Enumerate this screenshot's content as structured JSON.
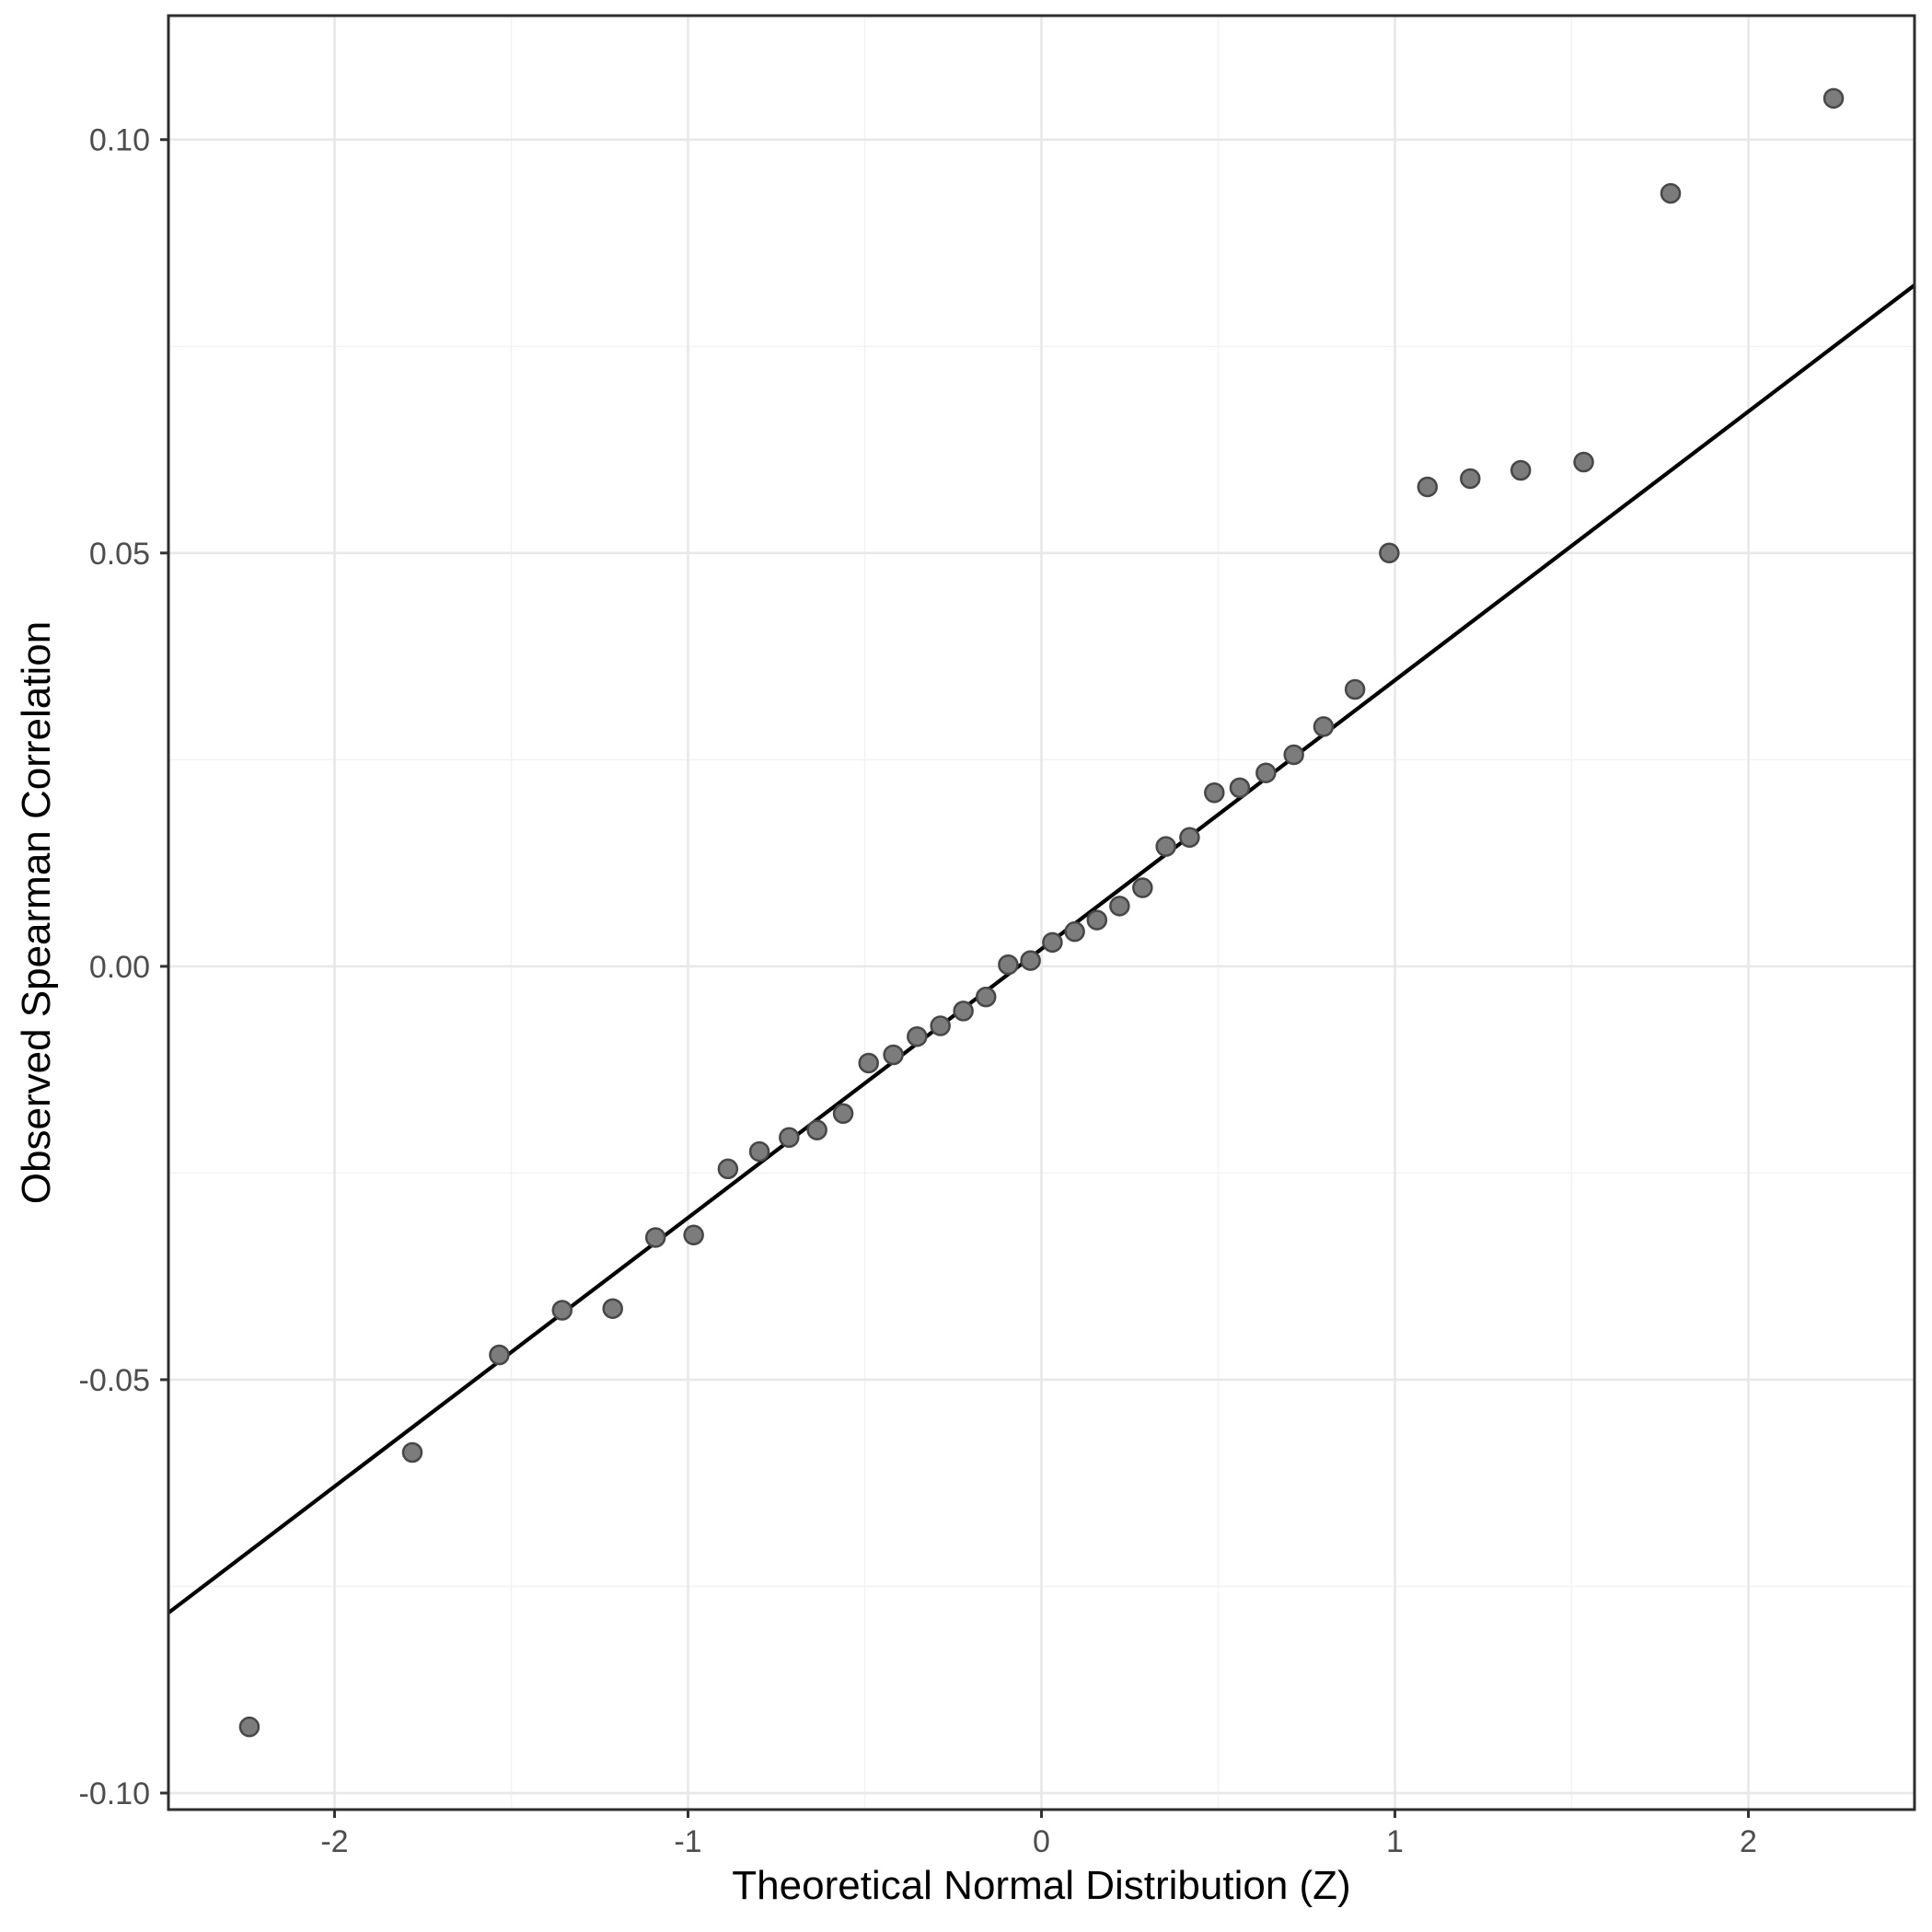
{
  "chart_data": {
    "type": "scatter",
    "title": "",
    "xlabel": "Theoretical Normal Distribution (Z)",
    "ylabel": "Observed Spearman Correlation",
    "xlim": [
      -2.47,
      2.47
    ],
    "ylim": [
      -0.102,
      0.115
    ],
    "grid": "on",
    "legend": "none",
    "x_ticks": [
      {
        "v": -2,
        "label": "-2"
      },
      {
        "v": -1,
        "label": "-1"
      },
      {
        "v": 0,
        "label": "0"
      },
      {
        "v": 1,
        "label": "1"
      },
      {
        "v": 2,
        "label": "2"
      }
    ],
    "y_ticks": [
      {
        "v": 0.1,
        "label": "0.10"
      },
      {
        "v": 0.05,
        "label": "0.05"
      },
      {
        "v": 0.0,
        "label": "0.00"
      },
      {
        "v": -0.05,
        "label": "-0.05"
      },
      {
        "v": -0.1,
        "label": "-0.10"
      }
    ],
    "x_minor": [
      -1.5,
      -0.5,
      0.5,
      1.5
    ],
    "y_minor": [
      -0.075,
      -0.025,
      0.025,
      0.075
    ],
    "ref_line": {
      "x1": -2.47,
      "y1": -0.0782,
      "x2": 2.47,
      "y2": 0.0824,
      "slope": 0.0325,
      "intercept": 0.0021
    },
    "points": [
      {
        "x": -2.241,
        "y": -0.092
      },
      {
        "x": -1.78,
        "y": -0.0588
      },
      {
        "x": -1.534,
        "y": -0.047
      },
      {
        "x": -1.356,
        "y": -0.0416
      },
      {
        "x": -1.213,
        "y": -0.0414
      },
      {
        "x": -1.092,
        "y": -0.0328
      },
      {
        "x": -0.984,
        "y": -0.0325
      },
      {
        "x": -0.887,
        "y": -0.0245
      },
      {
        "x": -0.798,
        "y": -0.0224
      },
      {
        "x": -0.714,
        "y": -0.0207
      },
      {
        "x": -0.635,
        "y": -0.0198
      },
      {
        "x": -0.561,
        "y": -0.0178
      },
      {
        "x": -0.489,
        "y": -0.0117
      },
      {
        "x": -0.419,
        "y": -0.0107
      },
      {
        "x": -0.352,
        "y": -0.0085
      },
      {
        "x": -0.286,
        "y": -0.0072
      },
      {
        "x": -0.221,
        "y": -0.0054
      },
      {
        "x": -0.157,
        "y": -0.0037
      },
      {
        "x": -0.094,
        "y": 0.0002
      },
      {
        "x": -0.031,
        "y": 0.0007
      },
      {
        "x": 0.031,
        "y": 0.0029
      },
      {
        "x": 0.094,
        "y": 0.0042
      },
      {
        "x": 0.157,
        "y": 0.0056
      },
      {
        "x": 0.221,
        "y": 0.0073
      },
      {
        "x": 0.286,
        "y": 0.0095
      },
      {
        "x": 0.352,
        "y": 0.0145
      },
      {
        "x": 0.419,
        "y": 0.0156
      },
      {
        "x": 0.489,
        "y": 0.021
      },
      {
        "x": 0.561,
        "y": 0.0216
      },
      {
        "x": 0.635,
        "y": 0.0234
      },
      {
        "x": 0.714,
        "y": 0.0256
      },
      {
        "x": 0.798,
        "y": 0.029
      },
      {
        "x": 0.887,
        "y": 0.0335
      },
      {
        "x": 0.984,
        "y": 0.05
      },
      {
        "x": 1.092,
        "y": 0.058
      },
      {
        "x": 1.213,
        "y": 0.059
      },
      {
        "x": 1.356,
        "y": 0.06
      },
      {
        "x": 1.534,
        "y": 0.061
      },
      {
        "x": 1.78,
        "y": 0.0935
      },
      {
        "x": 2.241,
        "y": 0.105
      }
    ],
    "style": {
      "point_fill": "#7c7c7c",
      "point_stroke": "#474747",
      "ref_line_color": "#000000",
      "grid_major_color": "#e8e8e8",
      "grid_minor_color": "#f2f2f2",
      "panel_border_color": "#2e2e2e",
      "tick_mark_color": "#333333",
      "tick_label_color": "#4d4d4d",
      "axis_title_color": "#000000",
      "panel_background": "#ffffff"
    }
  }
}
